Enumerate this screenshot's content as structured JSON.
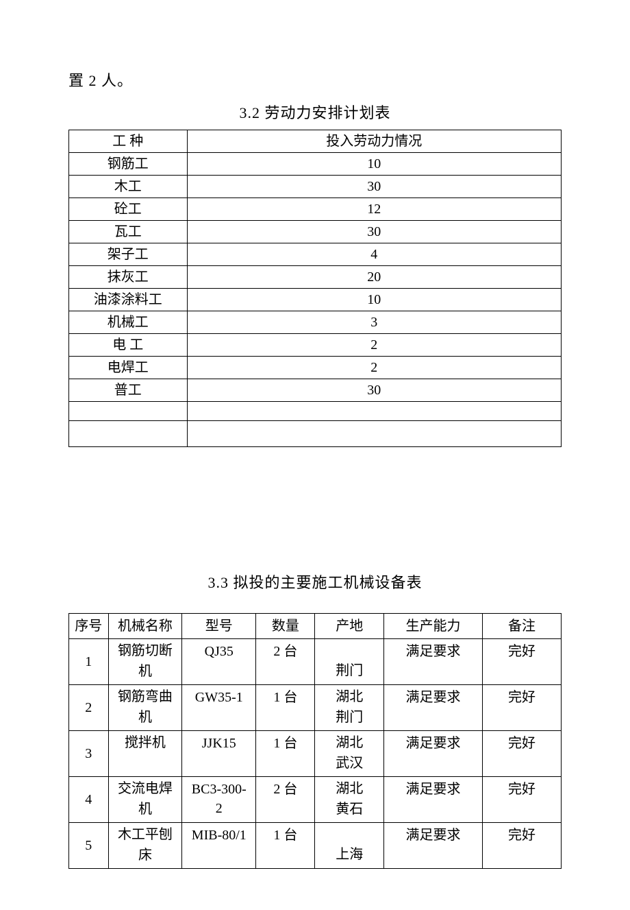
{
  "intro": "置 2 人。",
  "table1": {
    "title": "3.2 劳动力安排计划表",
    "headers": [
      "工 种",
      "投入劳动力情况"
    ],
    "rows": [
      [
        "钢筋工",
        "10"
      ],
      [
        "木工",
        "30"
      ],
      [
        "砼工",
        "12"
      ],
      [
        "瓦工",
        "30"
      ],
      [
        "架子工",
        "4"
      ],
      [
        "抹灰工",
        "20"
      ],
      [
        "油漆涂料工",
        "10"
      ],
      [
        "机械工",
        "3"
      ],
      [
        "电 工",
        "2"
      ],
      [
        "电焊工",
        "2"
      ],
      [
        "普工",
        "30"
      ],
      [
        "",
        ""
      ],
      [
        "",
        ""
      ]
    ]
  },
  "table2": {
    "title": "3.3 拟投的主要施工机械设备表",
    "headers": [
      "序号",
      "机械名称",
      "型号",
      "数量",
      "产地",
      "生产能力",
      "备注"
    ],
    "rows": [
      {
        "seq": "1",
        "name": "钢筋切断机",
        "model": "QJ35",
        "qty": "2 台",
        "origin": "荆门",
        "capacity": "满足要求",
        "remark": "完好"
      },
      {
        "seq": "2",
        "name": "钢筋弯曲机",
        "model": "GW35-1",
        "qty": "1 台",
        "origin": "湖北荆门",
        "capacity": "满足要求",
        "remark": "完好"
      },
      {
        "seq": "3",
        "name": "搅拌机",
        "model": "JJK15",
        "qty": "1 台",
        "origin": "湖北武汉",
        "capacity": "满足要求",
        "remark": "完好"
      },
      {
        "seq": "4",
        "name": "交流电焊机",
        "model": "BC3-300-2",
        "qty": "2 台",
        "origin": "湖北黄石",
        "capacity": "满足要求",
        "remark": "完好"
      },
      {
        "seq": "5",
        "name": "木工平刨床",
        "model": "MIB-80/1",
        "qty": "1 台",
        "origin": "上海",
        "capacity": "满足要求",
        "remark": "完好"
      }
    ]
  }
}
